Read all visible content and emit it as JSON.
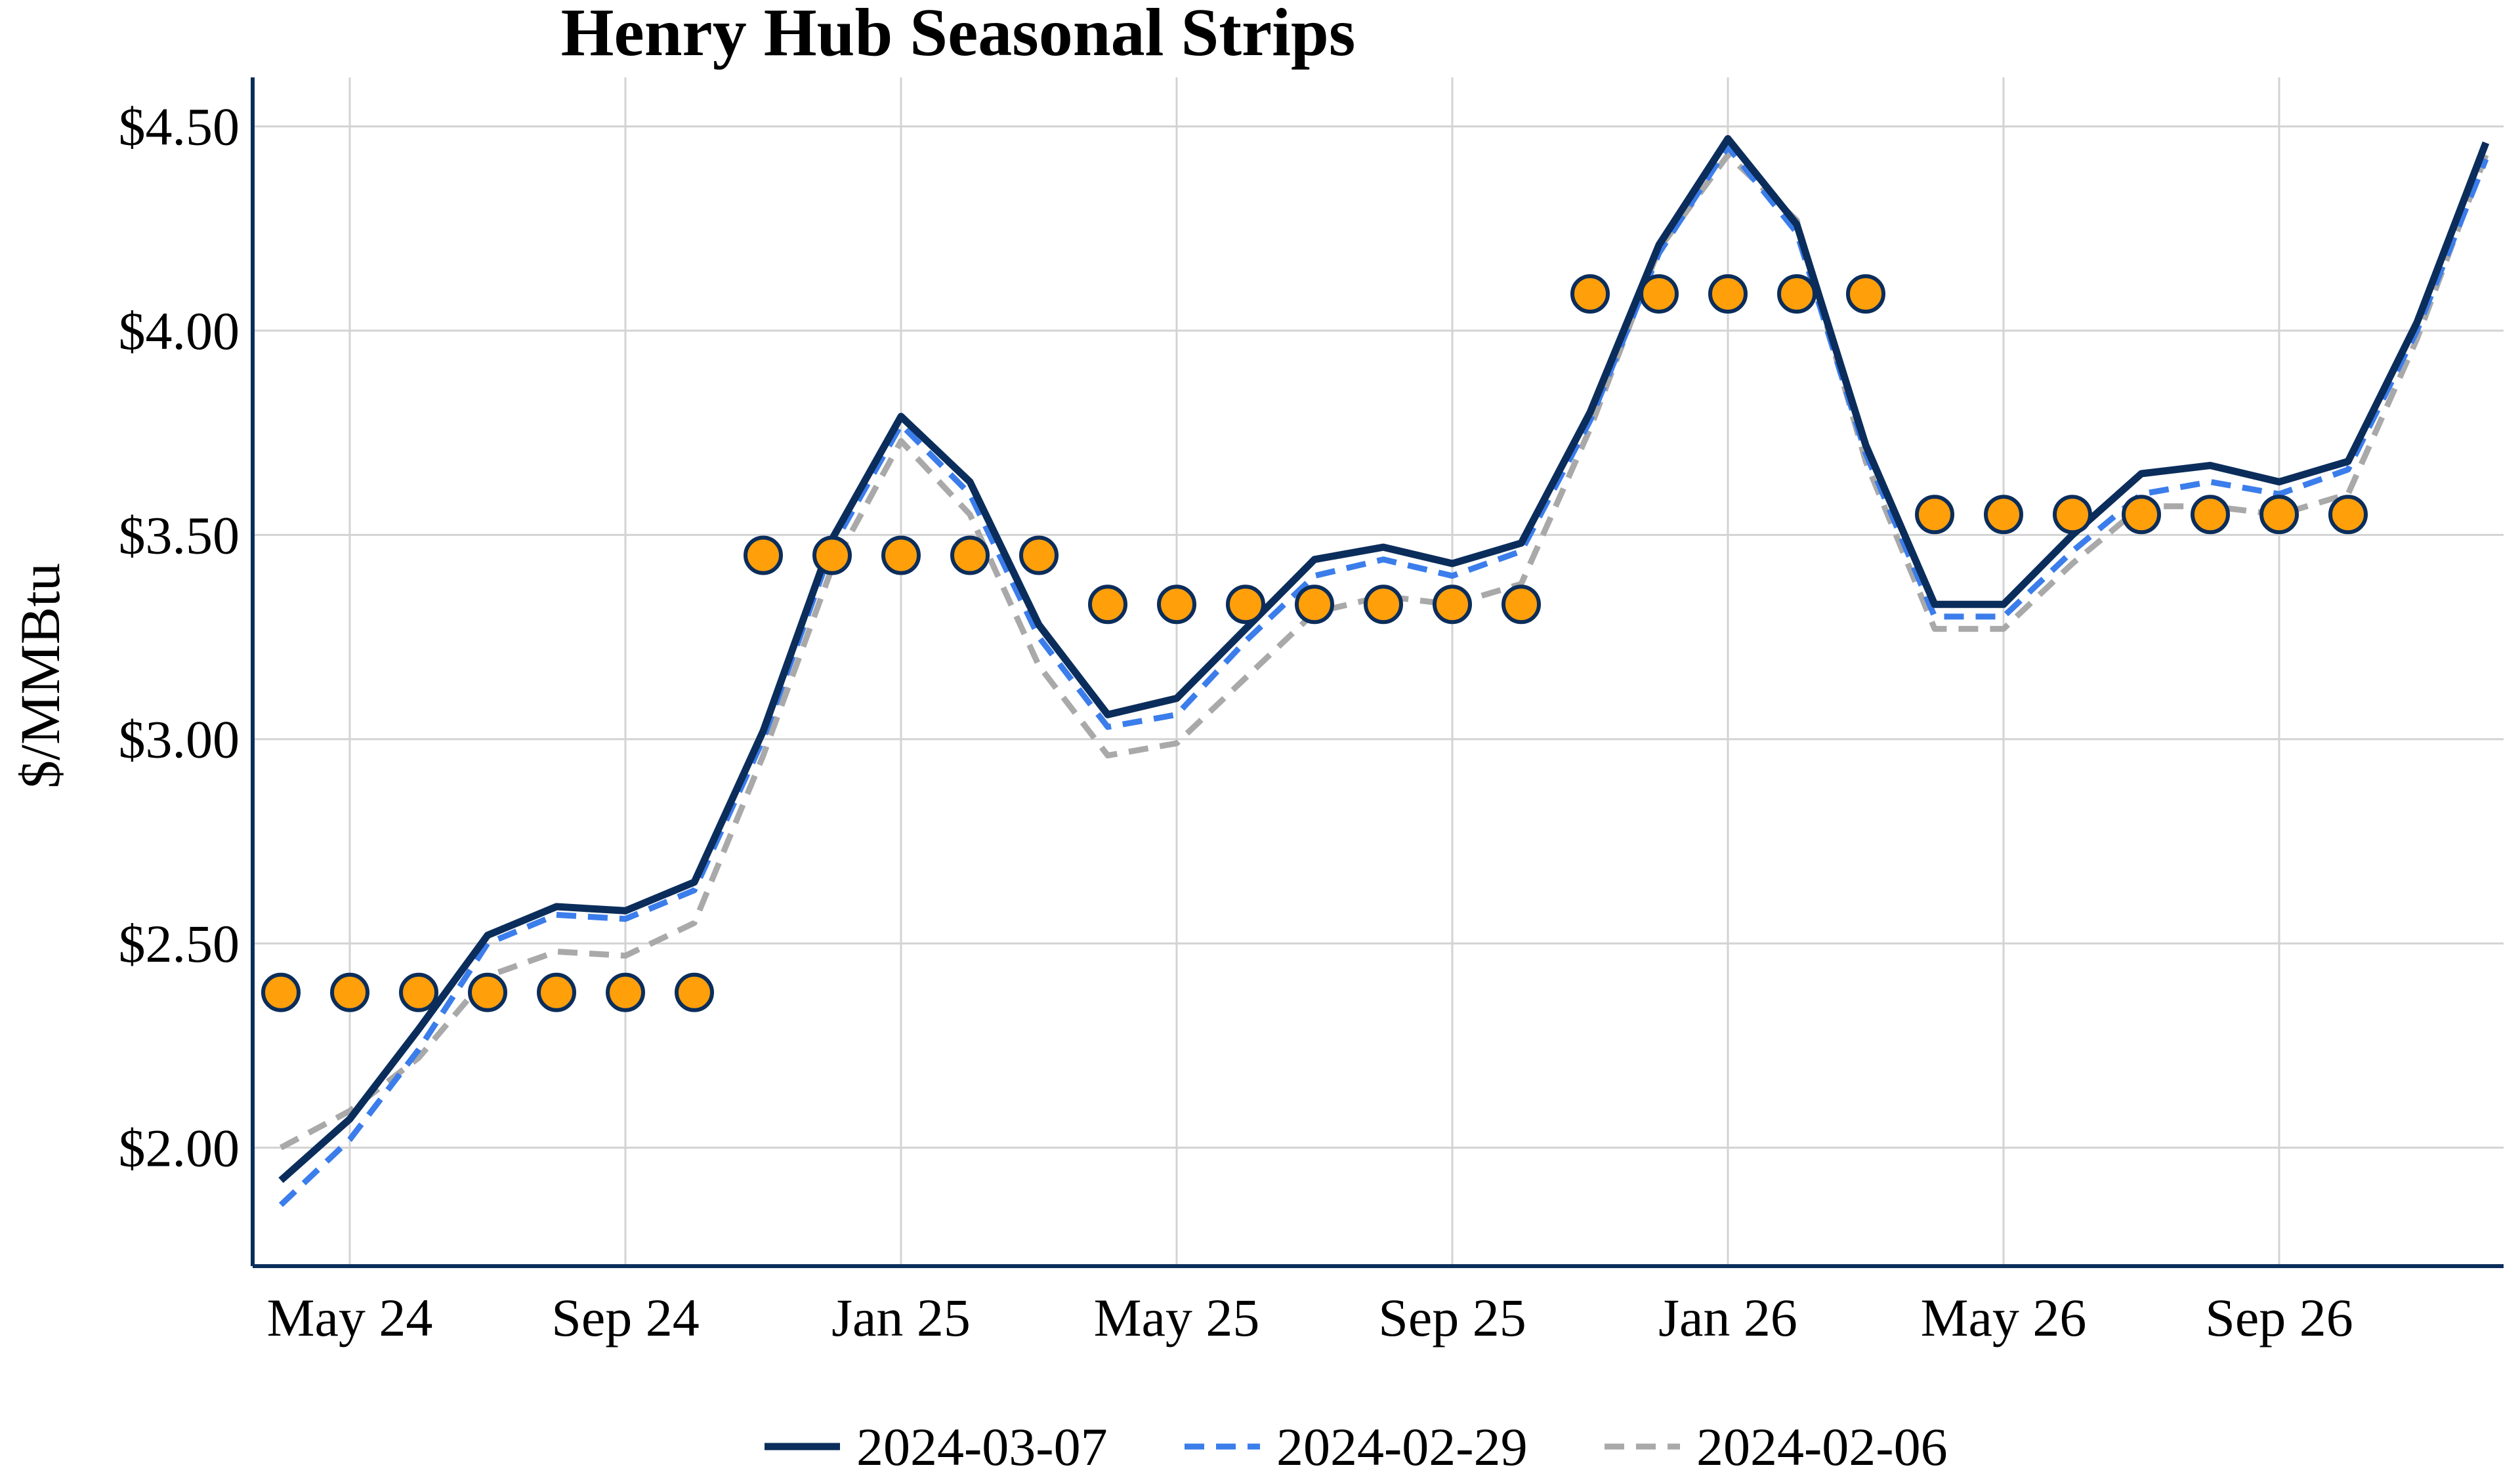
{
  "chart_data": {
    "type": "line",
    "title": "Henry Hub Seasonal Strips",
    "xlabel": "",
    "ylabel": "$/MMBtu",
    "x": [
      "Apr 24",
      "May 24",
      "Jun 24",
      "Jul 24",
      "Aug 24",
      "Sep 24",
      "Oct 24",
      "Nov 24",
      "Dec 24",
      "Jan 25",
      "Feb 25",
      "Mar 25",
      "Apr 25",
      "May 25",
      "Jun 25",
      "Jul 25",
      "Aug 25",
      "Sep 25",
      "Oct 25",
      "Nov 25",
      "Dec 25",
      "Jan 26",
      "Feb 26",
      "Mar 26",
      "Apr 26",
      "May 26",
      "Jun 26",
      "Jul 26",
      "Aug 26",
      "Sep 26",
      "Oct 26",
      "Nov 26",
      "Dec 26"
    ],
    "x_ticks": [
      "May 24",
      "Sep 24",
      "Jan 25",
      "May 25",
      "Sep 25",
      "Jan 26",
      "May 26",
      "Sep 26"
    ],
    "y_ticks": [
      2.0,
      2.5,
      3.0,
      3.5,
      4.0,
      4.5
    ],
    "y_tick_labels": [
      "$2.00",
      "$2.50",
      "$3.00",
      "$3.50",
      "$4.00",
      "$4.50"
    ],
    "ylim": [
      1.71,
      4.62
    ],
    "grid": true,
    "legend_position": "bottom",
    "series": [
      {
        "name": "2024-03-07",
        "style": "solid",
        "color": "#0b2d5b",
        "values": [
          1.92,
          2.07,
          2.29,
          2.52,
          2.59,
          2.58,
          2.65,
          3.02,
          3.49,
          3.79,
          3.63,
          3.28,
          3.06,
          3.1,
          3.27,
          3.44,
          3.47,
          3.43,
          3.48,
          3.8,
          4.21,
          4.47,
          4.26,
          3.72,
          3.33,
          3.33,
          3.5,
          3.65,
          3.67,
          3.63,
          3.68,
          4.02,
          4.46
        ]
      },
      {
        "name": "2024-02-29",
        "style": "dashed",
        "color": "#3b7deb",
        "values": [
          1.86,
          2.02,
          2.24,
          2.5,
          2.57,
          2.56,
          2.63,
          3.0,
          3.47,
          3.77,
          3.6,
          3.25,
          3.03,
          3.06,
          3.24,
          3.4,
          3.44,
          3.4,
          3.46,
          3.78,
          4.19,
          4.45,
          4.24,
          3.7,
          3.3,
          3.3,
          3.46,
          3.6,
          3.63,
          3.6,
          3.66,
          4.0,
          4.42
        ]
      },
      {
        "name": "2024-02-06",
        "style": "dashed",
        "color": "#a9a9a9",
        "values": [
          2.0,
          2.09,
          2.22,
          2.42,
          2.48,
          2.47,
          2.55,
          2.96,
          3.42,
          3.73,
          3.55,
          3.18,
          2.96,
          2.99,
          3.15,
          3.31,
          3.35,
          3.33,
          3.38,
          3.76,
          4.2,
          4.43,
          4.27,
          3.68,
          3.27,
          3.27,
          3.43,
          3.57,
          3.57,
          3.55,
          3.6,
          3.98,
          4.43
        ]
      }
    ],
    "strip_markers": {
      "color": "#ff9f0a",
      "edge_color": "#0b2d5b",
      "groups": [
        {
          "value": 2.38,
          "x": [
            "Apr 24",
            "May 24",
            "Jun 24",
            "Jul 24",
            "Aug 24",
            "Sep 24",
            "Oct 24"
          ]
        },
        {
          "value": 3.45,
          "x": [
            "Nov 24",
            "Dec 24",
            "Jan 25",
            "Feb 25",
            "Mar 25"
          ]
        },
        {
          "value": 3.33,
          "x": [
            "Apr 25",
            "May 25",
            "Jun 25",
            "Jul 25",
            "Aug 25",
            "Sep 25",
            "Oct 25"
          ]
        },
        {
          "value": 4.09,
          "x": [
            "Nov 25",
            "Dec 25",
            "Jan 26",
            "Feb 26",
            "Mar 26"
          ]
        },
        {
          "value": 3.55,
          "x": [
            "Apr 26",
            "May 26",
            "Jun 26",
            "Jul 26",
            "Aug 26",
            "Sep 26",
            "Oct 26"
          ]
        }
      ]
    }
  }
}
